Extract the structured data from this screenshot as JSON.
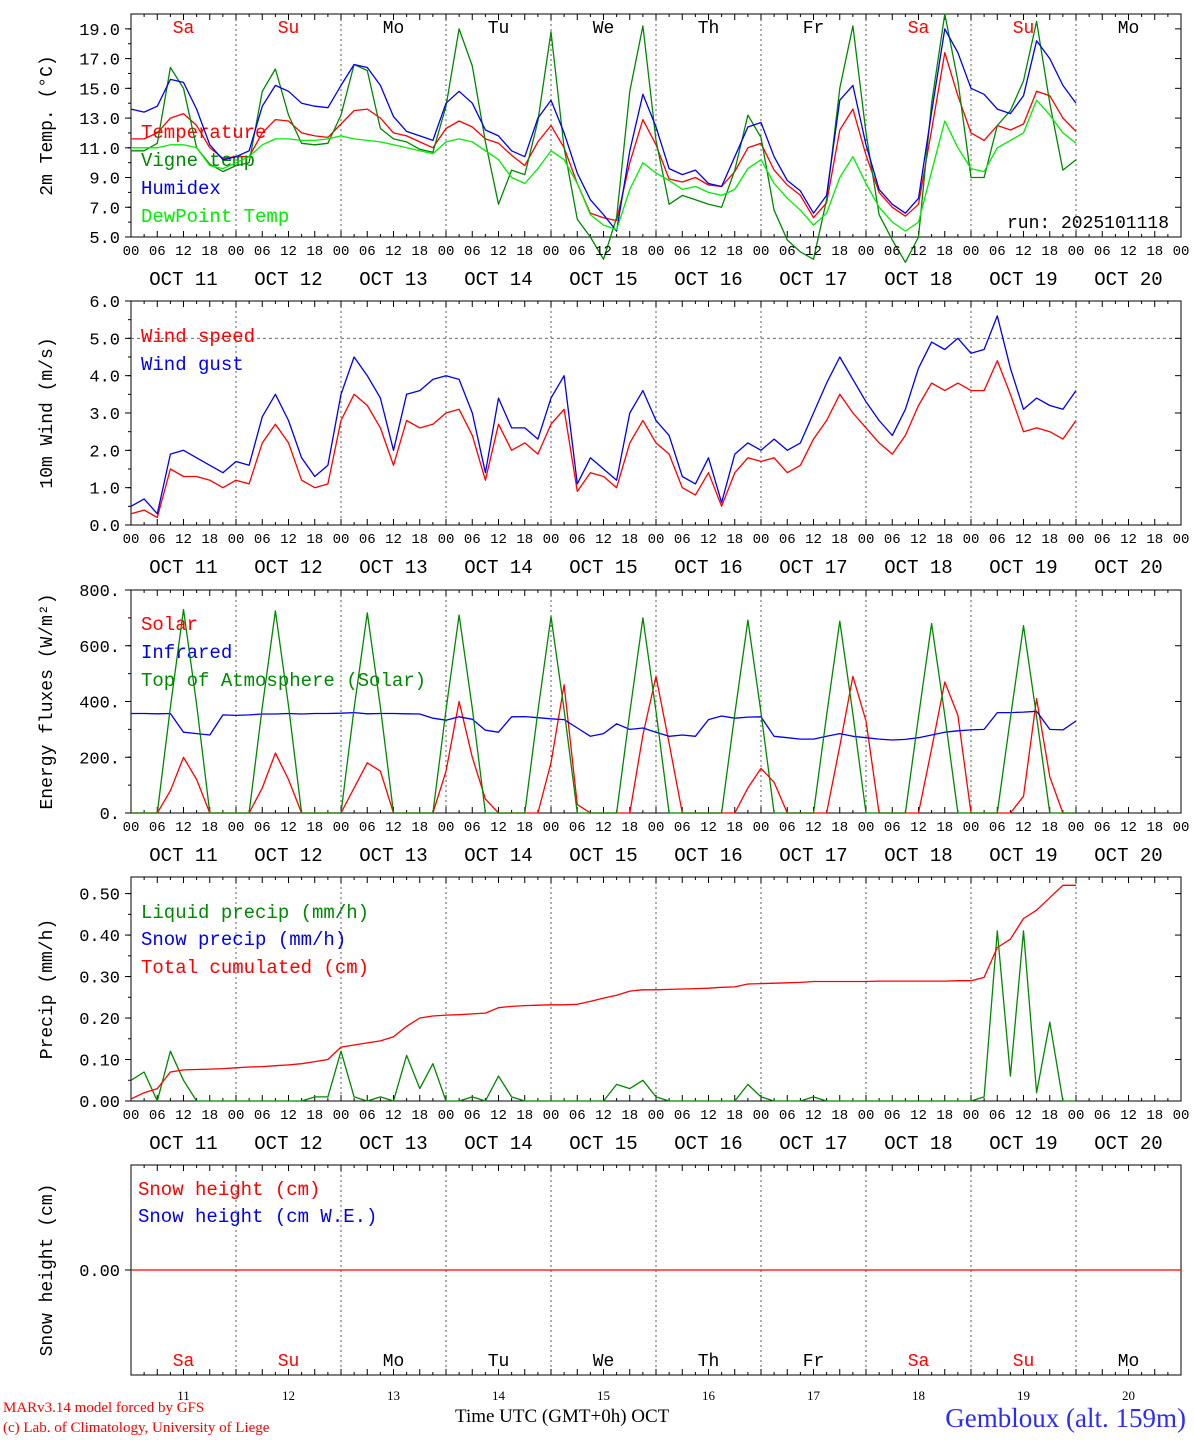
{
  "chart_data": [
    {
      "type": "line",
      "ylabel": "2m Temp. (°C)",
      "ylim": [
        5,
        20
      ],
      "yticks": [
        5,
        7,
        9,
        11,
        13,
        15,
        17,
        19
      ],
      "tick_format": 1,
      "run_label": "run: 2025101118",
      "day_names": [
        "Sa",
        "Su",
        "Mo",
        "Tu",
        "We",
        "Th",
        "Fr",
        "Sa",
        "Su",
        "Mo"
      ],
      "weekend": [
        true,
        true,
        false,
        false,
        false,
        false,
        false,
        true,
        true,
        false
      ],
      "x_unit": "hours since 2025-10-11 00 UTC (3-hourly)",
      "series": [
        {
          "name": "Temperature",
          "color": "#ff0000",
          "values": [
            11.6,
            11.6,
            12.0,
            13.0,
            13.3,
            12.5,
            11.0,
            10.3,
            10.4,
            10.4,
            12.0,
            12.9,
            12.8,
            12.0,
            11.8,
            11.7,
            12.6,
            13.5,
            13.6,
            13.0,
            12.0,
            11.8,
            11.4,
            11.0,
            12.3,
            12.8,
            12.4,
            11.6,
            11.3,
            10.5,
            9.8,
            11.4,
            12.5,
            11.0,
            8.6,
            6.6,
            6.3,
            6.1,
            10.0,
            12.9,
            11.2,
            8.9,
            8.7,
            9.0,
            8.5,
            8.4,
            9.4,
            11.0,
            11.3,
            9.5,
            8.5,
            7.8,
            6.3,
            7.3,
            12.2,
            13.6,
            10.5,
            8.0,
            7.0,
            6.4,
            7.2,
            12.2,
            17.4,
            14.5,
            12.0,
            11.5,
            12.5,
            12.2,
            12.6,
            14.8,
            14.5,
            13.0,
            12.1
          ]
        },
        {
          "name": "Vigne temp",
          "color": "#008800",
          "values": [
            10.8,
            10.8,
            11.3,
            16.4,
            15.0,
            11.0,
            9.9,
            9.4,
            9.8,
            10.0,
            14.8,
            16.3,
            13.2,
            11.3,
            11.2,
            11.3,
            13.2,
            16.6,
            16.2,
            12.3,
            11.6,
            11.4,
            10.9,
            10.7,
            13.8,
            19.0,
            16.5,
            11.4,
            7.2,
            9.5,
            9.2,
            12.8,
            18.8,
            11.0,
            6.2,
            5.0,
            3.5,
            6.3,
            14.8,
            19.2,
            11.5,
            7.2,
            7.8,
            7.5,
            7.2,
            7.0,
            9.5,
            13.2,
            11.7,
            6.8,
            4.8,
            4.0,
            3.5,
            7.5,
            15.0,
            19.2,
            12.0,
            6.5,
            4.8,
            3.3,
            5.0,
            14.0,
            20.0,
            15.5,
            9.0,
            9.0,
            12.5,
            13.5,
            15.5,
            19.5,
            14.0,
            9.5,
            10.2
          ]
        },
        {
          "name": "Humidex",
          "color": "#0000ee",
          "values": [
            13.6,
            13.4,
            13.8,
            15.6,
            15.4,
            13.6,
            11.2,
            10.2,
            10.4,
            10.8,
            13.8,
            15.2,
            14.8,
            14.0,
            13.8,
            13.7,
            15.2,
            16.6,
            16.4,
            15.2,
            13.1,
            12.1,
            11.8,
            11.5,
            14.0,
            14.8,
            14.0,
            12.2,
            11.8,
            10.8,
            10.4,
            13.0,
            14.2,
            12.0,
            9.3,
            7.5,
            6.5,
            5.4,
            10.8,
            14.6,
            12.4,
            9.6,
            9.2,
            9.5,
            8.6,
            8.4,
            10.4,
            12.4,
            12.7,
            10.4,
            8.8,
            8.1,
            6.6,
            7.8,
            14.2,
            15.2,
            11.2,
            8.2,
            7.2,
            6.6,
            7.6,
            13.4,
            19.0,
            17.4,
            15.0,
            14.6,
            13.6,
            13.3,
            14.5,
            18.2,
            17.0,
            15.2,
            14.0
          ]
        },
        {
          "name": "DewPoint Temp",
          "color": "#00ee00",
          "values": [
            11.0,
            11.0,
            11.0,
            11.2,
            11.2,
            11.0,
            9.8,
            9.6,
            10.0,
            10.4,
            11.2,
            11.6,
            11.6,
            11.5,
            11.5,
            11.6,
            11.8,
            11.6,
            11.5,
            11.4,
            11.2,
            11.0,
            10.8,
            10.6,
            11.4,
            11.6,
            11.4,
            10.8,
            10.2,
            9.0,
            8.6,
            9.6,
            10.8,
            10.2,
            8.6,
            6.5,
            5.8,
            5.5,
            8.2,
            10.0,
            9.3,
            8.8,
            8.2,
            8.4,
            8.0,
            7.8,
            8.2,
            9.6,
            10.2,
            8.6,
            7.6,
            6.8,
            5.8,
            6.6,
            9.0,
            10.4,
            8.6,
            7.0,
            6.0,
            5.4,
            6.0,
            9.4,
            12.8,
            11.0,
            9.6,
            9.4,
            11.0,
            11.5,
            12.0,
            14.2,
            13.2,
            12.0,
            11.3
          ]
        }
      ]
    },
    {
      "type": "line",
      "ylabel": "10m Wind (m/s)",
      "ylim": [
        0,
        6
      ],
      "yticks": [
        0,
        1,
        2,
        3,
        4,
        5,
        6
      ],
      "tick_format": 1,
      "reference_line": 5.0,
      "series": [
        {
          "name": "Wind speed",
          "color": "#ff0000",
          "values": [
            0.3,
            0.4,
            0.2,
            1.5,
            1.3,
            1.3,
            1.2,
            1.0,
            1.2,
            1.1,
            2.2,
            2.7,
            2.2,
            1.2,
            1.0,
            1.1,
            2.8,
            3.5,
            3.2,
            2.6,
            1.6,
            2.8,
            2.6,
            2.7,
            3.0,
            3.1,
            2.4,
            1.2,
            2.7,
            2.0,
            2.2,
            1.9,
            2.7,
            3.1,
            0.9,
            1.4,
            1.3,
            1.0,
            2.2,
            2.8,
            2.2,
            1.9,
            1.0,
            0.8,
            1.4,
            0.5,
            1.4,
            1.8,
            1.7,
            1.8,
            1.4,
            1.6,
            2.3,
            2.8,
            3.5,
            3.0,
            2.6,
            2.2,
            1.9,
            2.4,
            3.2,
            3.8,
            3.6,
            3.8,
            3.6,
            3.6,
            4.4,
            3.5,
            2.5,
            2.6,
            2.5,
            2.3,
            2.8
          ]
        },
        {
          "name": "Wind gust",
          "color": "#0000ee",
          "values": [
            0.5,
            0.7,
            0.3,
            1.9,
            2.0,
            1.8,
            1.6,
            1.4,
            1.7,
            1.6,
            2.9,
            3.5,
            2.8,
            1.8,
            1.3,
            1.6,
            3.5,
            4.5,
            4.0,
            3.4,
            2.0,
            3.5,
            3.6,
            3.9,
            4.0,
            3.9,
            3.0,
            1.4,
            3.4,
            2.6,
            2.6,
            2.3,
            3.4,
            4.0,
            1.1,
            1.8,
            1.5,
            1.2,
            3.0,
            3.6,
            2.8,
            2.4,
            1.3,
            1.1,
            1.8,
            0.6,
            1.9,
            2.2,
            2.0,
            2.3,
            2.0,
            2.2,
            3.0,
            3.8,
            4.5,
            3.9,
            3.3,
            2.8,
            2.4,
            3.1,
            4.2,
            4.9,
            4.7,
            5.0,
            4.6,
            4.7,
            5.6,
            4.2,
            3.1,
            3.4,
            3.2,
            3.1,
            3.6
          ]
        }
      ]
    },
    {
      "type": "line",
      "ylabel": "Energy fluxes (W/m²)",
      "ylim": [
        0,
        800
      ],
      "yticks": [
        0,
        200,
        400,
        600,
        800
      ],
      "tick_format": 0,
      "series": [
        {
          "name": "Solar",
          "color": "#ff0000",
          "values": [
            0,
            0,
            0,
            80,
            200,
            120,
            0,
            0,
            0,
            0,
            90,
            215,
            120,
            0,
            0,
            0,
            0,
            90,
            180,
            150,
            0,
            0,
            0,
            0,
            150,
            400,
            200,
            50,
            0,
            0,
            0,
            0,
            180,
            460,
            30,
            0,
            0,
            0,
            0,
            280,
            490,
            250,
            0,
            0,
            0,
            0,
            0,
            90,
            160,
            110,
            0,
            0,
            0,
            0,
            240,
            490,
            330,
            0,
            0,
            0,
            0,
            230,
            470,
            350,
            0,
            0,
            0,
            0,
            60,
            410,
            130,
            0,
            0
          ]
        },
        {
          "name": "Infrared",
          "color": "#0000ee",
          "values": [
            357,
            357,
            356,
            357,
            290,
            285,
            280,
            352,
            350,
            352,
            355,
            355,
            357,
            355,
            357,
            357,
            358,
            360,
            356,
            357,
            357,
            356,
            355,
            340,
            333,
            345,
            336,
            297,
            290,
            345,
            346,
            342,
            338,
            335,
            305,
            275,
            285,
            320,
            300,
            305,
            290,
            275,
            280,
            275,
            335,
            348,
            340,
            344,
            345,
            275,
            270,
            265,
            265,
            275,
            285,
            275,
            270,
            265,
            262,
            264,
            270,
            280,
            290,
            295,
            298,
            300,
            360,
            360,
            362,
            365,
            300,
            298,
            330
          ]
        },
        {
          "name": "Top of Atmosphere (Solar)",
          "color": "#008800",
          "values": [
            0,
            0,
            0,
            380,
            730,
            390,
            0,
            0,
            0,
            0,
            380,
            725,
            385,
            0,
            0,
            0,
            0,
            375,
            718,
            380,
            0,
            0,
            0,
            0,
            370,
            710,
            375,
            0,
            0,
            0,
            0,
            365,
            705,
            370,
            0,
            0,
            0,
            0,
            360,
            700,
            365,
            0,
            0,
            0,
            0,
            0,
            355,
            692,
            360,
            0,
            0,
            0,
            0,
            350,
            688,
            355,
            0,
            0,
            0,
            0,
            345,
            680,
            350,
            0,
            0,
            0,
            0,
            340,
            672,
            345,
            0,
            0,
            0
          ]
        }
      ]
    },
    {
      "type": "line",
      "ylabel": "Precip (mm/h)",
      "ylim": [
        0,
        0.54
      ],
      "yticks": [
        0.0,
        0.1,
        0.2,
        0.3,
        0.4,
        0.5
      ],
      "tick_format": 2,
      "series": [
        {
          "name": "Liquid precip (mm/h)",
          "color": "#008800",
          "values": [
            0.05,
            0.07,
            0.0,
            0.12,
            0.05,
            0.0,
            0.0,
            0.0,
            0.0,
            0.0,
            0.0,
            0.0,
            0.0,
            0.0,
            0.01,
            0.01,
            0.12,
            0.01,
            0.0,
            0.01,
            0.0,
            0.11,
            0.03,
            0.09,
            0.0,
            0.0,
            0.01,
            0.0,
            0.06,
            0.01,
            0.0,
            0.0,
            0.0,
            0.0,
            0.0,
            0.0,
            0.0,
            0.04,
            0.03,
            0.05,
            0.01,
            0.0,
            0.0,
            0.0,
            0.0,
            0.0,
            0.0,
            0.04,
            0.01,
            0.0,
            0.0,
            0.0,
            0.01,
            0.0,
            0.0,
            0.0,
            0.0,
            0.0,
            0.0,
            0.0,
            0.0,
            0.0,
            0.0,
            0.0,
            0.0,
            0.01,
            0.41,
            0.06,
            0.41,
            0.02,
            0.19,
            0.0,
            0.0
          ]
        },
        {
          "name": "Snow precip (mm/h)",
          "color": "#0000ee",
          "values": []
        },
        {
          "name": "Total cumulated (cm)",
          "color": "#ff0000",
          "values": [
            0.005,
            0.02,
            0.03,
            0.07,
            0.075,
            0.076,
            0.077,
            0.078,
            0.08,
            0.082,
            0.083,
            0.085,
            0.087,
            0.09,
            0.095,
            0.1,
            0.13,
            0.135,
            0.14,
            0.145,
            0.155,
            0.18,
            0.2,
            0.205,
            0.207,
            0.208,
            0.21,
            0.212,
            0.225,
            0.228,
            0.23,
            0.231,
            0.232,
            0.232,
            0.233,
            0.24,
            0.248,
            0.255,
            0.265,
            0.268,
            0.268,
            0.269,
            0.27,
            0.271,
            0.272,
            0.274,
            0.275,
            0.282,
            0.283,
            0.284,
            0.285,
            0.286,
            0.288,
            0.288,
            0.288,
            0.288,
            0.288,
            0.289,
            0.289,
            0.289,
            0.289,
            0.289,
            0.289,
            0.29,
            0.29,
            0.298,
            0.37,
            0.39,
            0.44,
            0.46,
            0.49,
            0.52,
            0.52
          ]
        }
      ]
    },
    {
      "type": "line",
      "ylabel": "Snow height (cm)",
      "ylim": [
        -0.7,
        0.7
      ],
      "yticks": [
        0.0
      ],
      "tick_format": 2,
      "series": [
        {
          "name": "Snow height (cm)",
          "color": "#ff0000",
          "values": [
            0,
            0
          ]
        },
        {
          "name": "Snow height (cm W.E.)",
          "color": "#0000ee",
          "values": []
        }
      ]
    }
  ],
  "x_axis": {
    "hour_labels": [
      "00",
      "06",
      "12",
      "18"
    ],
    "date_labels": [
      "OCT 11",
      "OCT 12",
      "OCT 13",
      "OCT 14",
      "OCT 15",
      "OCT 16",
      "OCT 17",
      "OCT 18",
      "OCT 19",
      "OCT 20"
    ],
    "day_numbers": [
      "11",
      "12",
      "13",
      "14",
      "15",
      "16",
      "17",
      "18",
      "19",
      "20"
    ],
    "final_hour": "00"
  },
  "footer": {
    "credit_line1": "MARv3.14 model forced by GFS",
    "credit_line2": "(c) Lab. of Climatology, University of Liege",
    "axis_title": "Time UTC (GMT+0h) OCT",
    "station": "Gembloux (alt. 159m)"
  }
}
